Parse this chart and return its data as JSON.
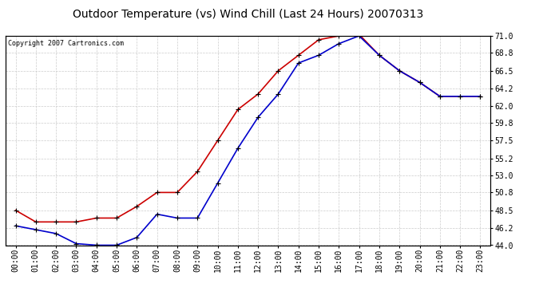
{
  "title": "Outdoor Temperature (vs) Wind Chill (Last 24 Hours) 20070313",
  "copyright": "Copyright 2007 Cartronics.com",
  "hours": [
    "00:00",
    "01:00",
    "02:00",
    "03:00",
    "04:00",
    "05:00",
    "06:00",
    "07:00",
    "08:00",
    "09:00",
    "10:00",
    "11:00",
    "12:00",
    "13:00",
    "14:00",
    "15:00",
    "16:00",
    "17:00",
    "18:00",
    "19:00",
    "20:00",
    "21:00",
    "22:00",
    "23:00"
  ],
  "temp": [
    48.5,
    47.0,
    47.0,
    47.0,
    47.5,
    47.5,
    49.0,
    50.8,
    50.8,
    53.5,
    57.5,
    61.5,
    63.5,
    66.5,
    68.5,
    70.5,
    71.0,
    71.2,
    68.5,
    66.5,
    65.0,
    63.2,
    63.2,
    63.2
  ],
  "wind_chill": [
    46.5,
    46.0,
    45.5,
    44.2,
    44.0,
    44.0,
    45.0,
    48.0,
    47.5,
    47.5,
    52.0,
    56.5,
    60.5,
    63.5,
    67.5,
    68.5,
    70.0,
    71.0,
    68.5,
    66.5,
    65.0,
    63.2,
    63.2,
    63.2
  ],
  "temp_color": "#cc0000",
  "wind_chill_color": "#0000cc",
  "marker_color": "black",
  "bg_color": "#ffffff",
  "plot_bg_color": "#ffffff",
  "grid_color": "#cccccc",
  "ylim_min": 44.0,
  "ylim_max": 71.0,
  "yticks": [
    44.0,
    46.2,
    48.5,
    50.8,
    53.0,
    55.2,
    57.5,
    59.8,
    62.0,
    64.2,
    66.5,
    68.8,
    71.0
  ],
  "ytick_labels": [
    "44.0",
    "46.2",
    "48.5",
    "50.8",
    "53.0",
    "55.2",
    "57.5",
    "59.8",
    "62.0",
    "64.2",
    "66.5",
    "68.8",
    "71.0"
  ],
  "title_fontsize": 10,
  "copyright_fontsize": 6,
  "tick_fontsize": 7,
  "line_width": 1.2,
  "marker_size": 4
}
